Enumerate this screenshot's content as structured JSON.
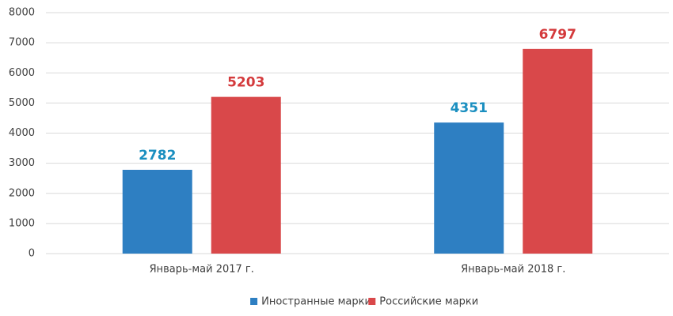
{
  "chart_data": {
    "type": "bar",
    "categories": [
      "Январь-май 2017 г.",
      "Январь-май 2018 г."
    ],
    "series": [
      {
        "name": "Иностранные марки",
        "color": "#2e7fc2",
        "label_color": "#1b8fc0",
        "values": [
          2782,
          4351
        ]
      },
      {
        "name": "Российские марки",
        "color": "#d9484a",
        "label_color": "#d43a3c",
        "values": [
          5203,
          6797
        ]
      }
    ],
    "ylim": [
      0,
      8000
    ],
    "yticks": [
      0,
      1000,
      2000,
      3000,
      4000,
      5000,
      6000,
      7000,
      8000
    ],
    "grid": true,
    "legend": "bottom",
    "data_labels": true
  }
}
